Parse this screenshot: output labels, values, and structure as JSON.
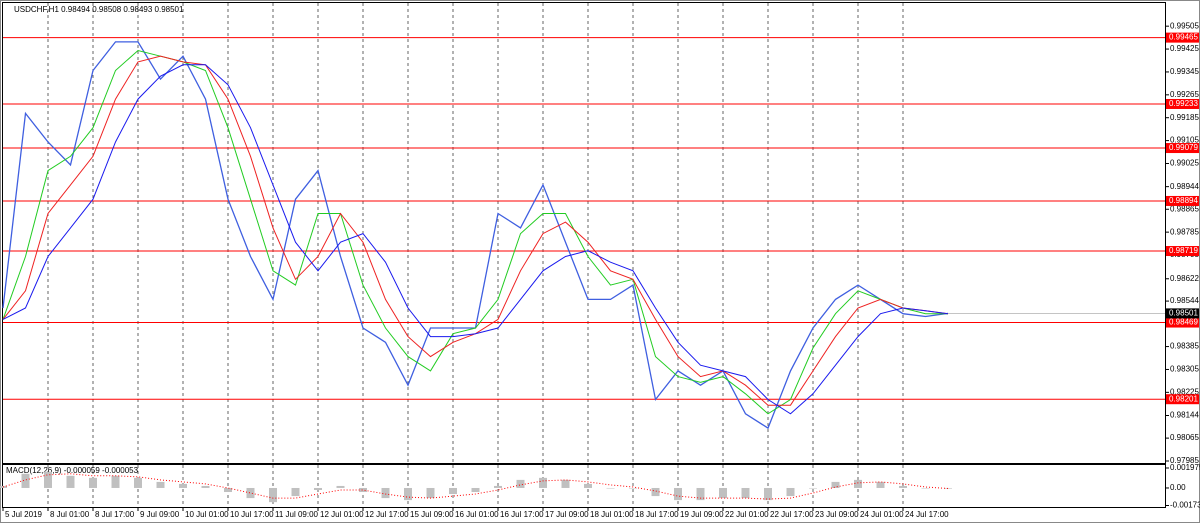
{
  "chart_data": [
    {
      "type": "line",
      "title": "USDCHF,H1  0.98494 0.98508 0.98493 0.98501",
      "categories": [
        "5 Jul 2019",
        null,
        "8 Jul 01:00",
        null,
        "8 Jul 17:00",
        null,
        "9 Jul 09:00",
        null,
        "10 Jul 01:00",
        null,
        "10 Jul 17:00",
        null,
        "11 Jul 09:00",
        null,
        "12 Jul 01:00",
        null,
        "12 Jul 17:00",
        null,
        "15 Jul 09:00",
        null,
        "16 Jul 01:00",
        null,
        "16 Jul 17:00",
        null,
        "17 Jul 09:00",
        null,
        "18 Jul 01:00",
        null,
        "18 Jul 17:00",
        null,
        "19 Jul 09:00",
        null,
        "22 Jul 01:00",
        null,
        "22 Jul 17:00",
        null,
        "23 Jul 09:00",
        null,
        "24 Jul 01:00",
        null,
        "24 Jul 17:00",
        null,
        null
      ],
      "series": [
        {
          "color": "#3f5fe0",
          "values": [
            0.9852,
            0.992,
            0.991,
            0.9902,
            0.9935,
            0.9945,
            0.9945,
            0.9932,
            0.994,
            0.9925,
            0.989,
            0.987,
            0.9855,
            0.989,
            0.99,
            0.987,
            0.9845,
            0.984,
            0.9825,
            0.9845,
            0.9845,
            0.9845,
            0.9885,
            0.988,
            0.9895,
            0.9875,
            0.9855,
            0.9855,
            0.986,
            0.982,
            0.983,
            0.9825,
            0.983,
            0.9815,
            0.981,
            0.983,
            0.9845,
            0.9855,
            0.986,
            0.9855,
            0.985,
            0.9849,
            0.98501
          ]
        },
        {
          "color": "#22cc22",
          "values": [
            0.9848,
            0.987,
            0.99,
            0.9905,
            0.9915,
            0.9935,
            0.9942,
            0.994,
            0.9938,
            0.9935,
            0.9915,
            0.989,
            0.9865,
            0.986,
            0.9885,
            0.9885,
            0.986,
            0.9845,
            0.9835,
            0.983,
            0.9843,
            0.9845,
            0.9855,
            0.9878,
            0.9885,
            0.9885,
            0.987,
            0.986,
            0.9862,
            0.9835,
            0.9828,
            0.9826,
            0.9828,
            0.9822,
            0.9815,
            0.982,
            0.9838,
            0.985,
            0.9858,
            0.9855,
            0.9852,
            0.985,
            0.985
          ]
        },
        {
          "color": "#ee2222",
          "values": [
            0.9848,
            0.9858,
            0.9885,
            0.9895,
            0.9905,
            0.9925,
            0.9938,
            0.994,
            0.9938,
            0.9937,
            0.9925,
            0.9905,
            0.988,
            0.9862,
            0.987,
            0.9885,
            0.9875,
            0.9855,
            0.9842,
            0.9835,
            0.984,
            0.9843,
            0.9848,
            0.9865,
            0.9878,
            0.9882,
            0.9875,
            0.9865,
            0.9862,
            0.9848,
            0.9835,
            0.9828,
            0.983,
            0.9825,
            0.9818,
            0.9818,
            0.983,
            0.9842,
            0.9852,
            0.9855,
            0.9852,
            0.9851,
            0.985
          ]
        },
        {
          "color": "#1a1aee",
          "values": [
            0.9848,
            0.9852,
            0.987,
            0.988,
            0.989,
            0.991,
            0.9925,
            0.9933,
            0.9937,
            0.9937,
            0.993,
            0.9915,
            0.9895,
            0.9875,
            0.9865,
            0.9875,
            0.9878,
            0.9868,
            0.9852,
            0.9842,
            0.9842,
            0.9843,
            0.9845,
            0.9855,
            0.9865,
            0.987,
            0.9872,
            0.9868,
            0.9865,
            0.9852,
            0.984,
            0.9832,
            0.983,
            0.9828,
            0.982,
            0.9815,
            0.9822,
            0.9832,
            0.9842,
            0.985,
            0.9852,
            0.9851,
            0.985
          ]
        }
      ],
      "levels": [
        0.99465,
        0.99233,
        0.99079,
        0.98894,
        0.98719,
        0.98469,
        0.98201
      ],
      "level_color": "#ff0000",
      "last_price": 0.98501,
      "ylim": [
        0.97978,
        0.99586
      ],
      "yticks": [
        0.99505,
        0.99425,
        0.99345,
        0.99265,
        0.99185,
        0.99105,
        0.99025,
        0.98944,
        0.98865,
        0.98785,
        0.98705,
        0.98622,
        0.98544,
        0.98464,
        0.98385,
        0.98305,
        0.98225,
        0.98144,
        0.98065,
        0.97985
      ],
      "grid": true
    },
    {
      "type": "macd",
      "title": "MACD(12,26,9) -0.000059 -0.000053",
      "series": [
        {
          "color": "#c0c0c0",
          "style": "bar",
          "values": [
            0.0002,
            0.0014,
            0.0016,
            0.0012,
            0.001,
            0.0012,
            0.001,
            0.0006,
            0.0004,
            0.0002,
            -0.0004,
            -0.001,
            -0.0014,
            -0.0008,
            -0.0002,
            0.0002,
            -0.0004,
            -0.001,
            -0.0012,
            -0.001,
            -0.0006,
            -0.0004,
            0.0002,
            0.0008,
            0.001,
            0.0008,
            0.0004,
            0,
            0,
            -0.0008,
            -0.0012,
            -0.0012,
            -0.001,
            -0.001,
            -0.0012,
            -0.0008,
            0,
            0.0006,
            0.0008,
            0.0006,
            0.0002,
            0,
            -5.9e-05
          ]
        },
        {
          "color": "#ff0000",
          "style": "dotted",
          "values": [
            0.0001,
            0.0008,
            0.0013,
            0.0014,
            0.0012,
            0.0012,
            0.0011,
            0.0008,
            0.0006,
            0.0004,
            0,
            -0.0005,
            -0.001,
            -0.001,
            -0.0006,
            -0.0002,
            -0.0002,
            -0.0006,
            -0.0009,
            -0.001,
            -0.0008,
            -0.0006,
            -0.0002,
            0.0003,
            0.0007,
            0.0008,
            0.0006,
            0.0003,
            0.0001,
            -0.0003,
            -0.0008,
            -0.001,
            -0.001,
            -0.001,
            -0.0011,
            -0.001,
            -0.0005,
            0.0001,
            0.0005,
            0.0006,
            0.0004,
            0.0001,
            -5.3e-05
          ]
        }
      ],
      "ylim": [
        -0.00188,
        0.00227
      ],
      "yticks": [
        0.001975,
        {
          "value": 0,
          "label": "0.00"
        },
        -0.001731
      ]
    }
  ]
}
